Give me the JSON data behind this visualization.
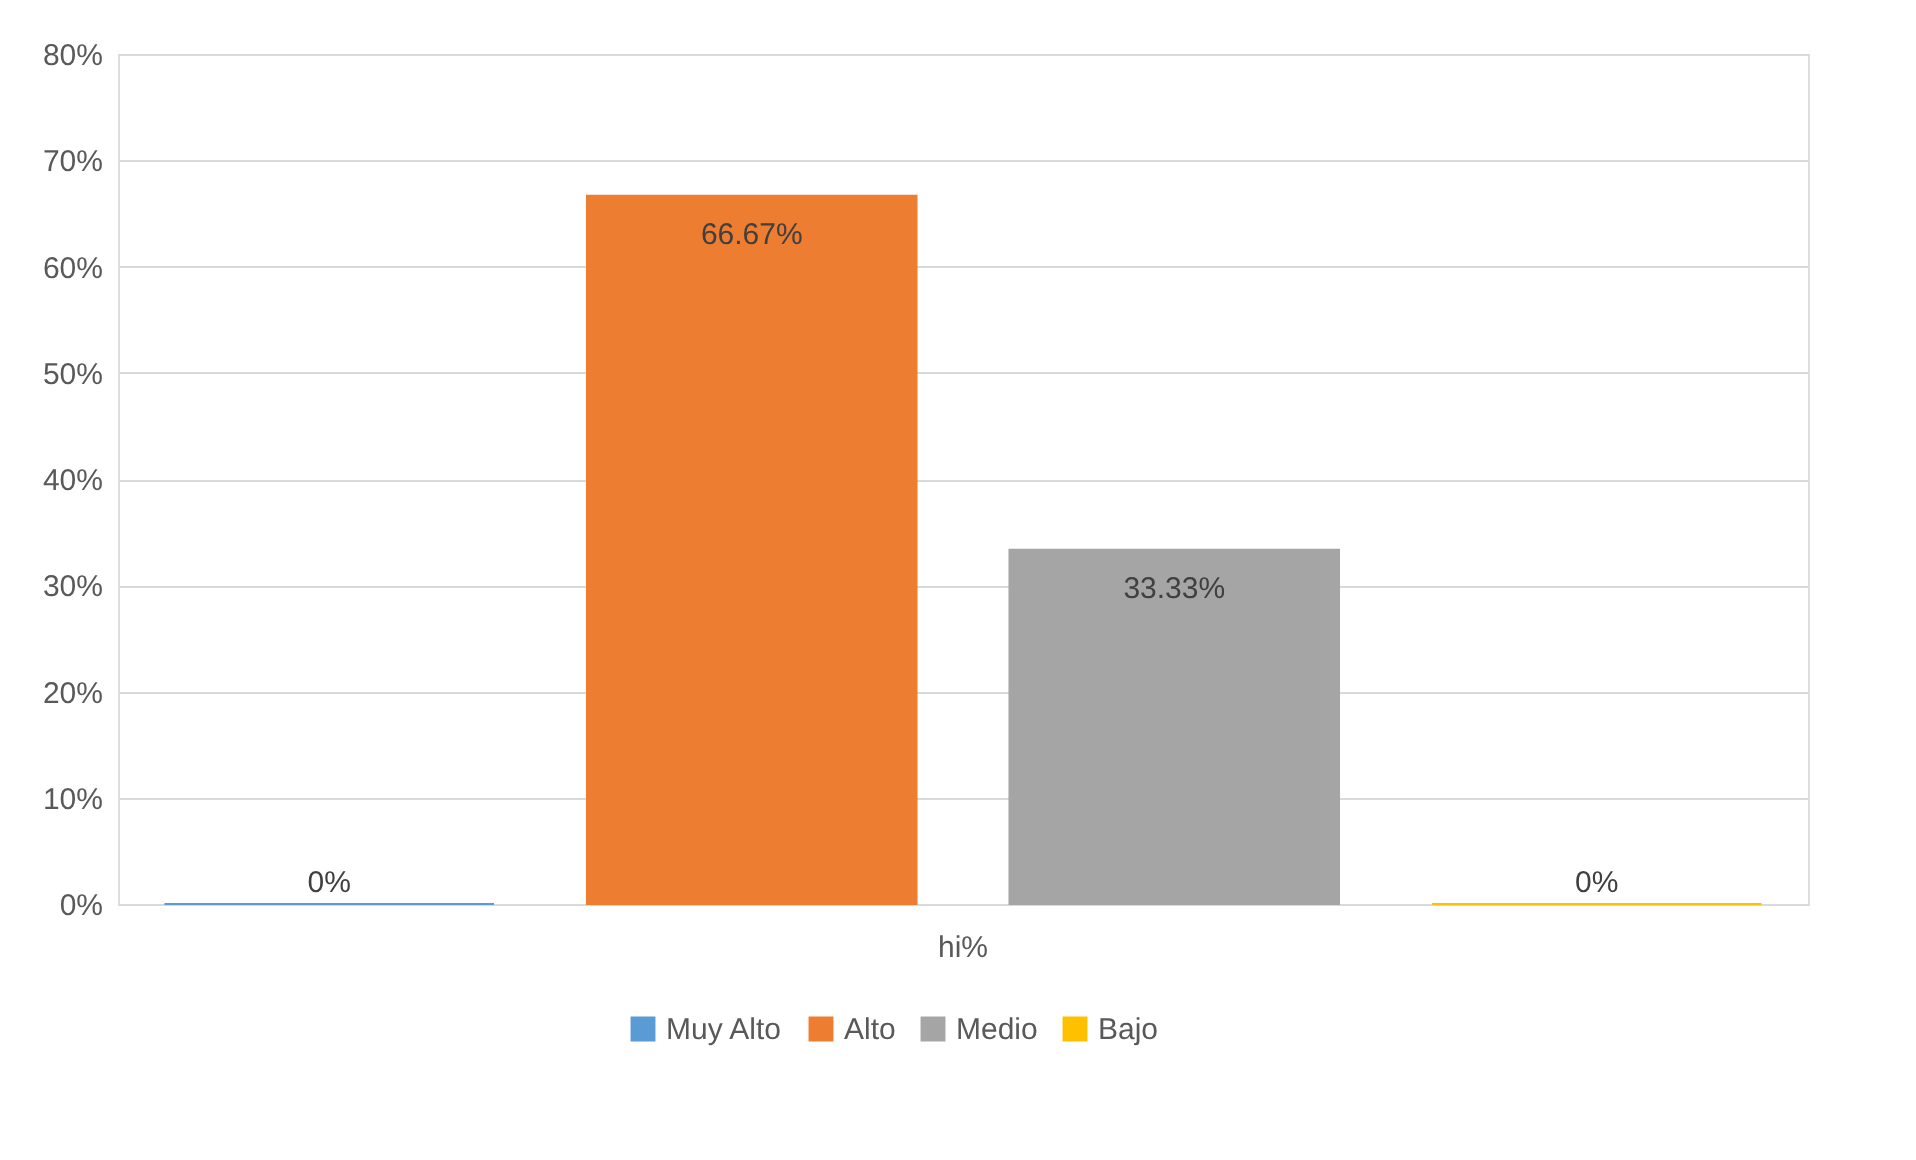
{
  "chart_data": {
    "type": "bar",
    "categories": [
      "hi%"
    ],
    "series": [
      {
        "name": "Muy Alto",
        "color": "#5b9bd5",
        "values": [
          0
        ],
        "value_labels": [
          "0%"
        ]
      },
      {
        "name": "Alto",
        "color": "#ed7d31",
        "values": [
          66.67
        ],
        "value_labels": [
          "66.67%"
        ]
      },
      {
        "name": "Medio",
        "color": "#a5a5a5",
        "values": [
          33.33
        ],
        "value_labels": [
          "33.33%"
        ]
      },
      {
        "name": "Bajo",
        "color": "#ffc000",
        "values": [
          0
        ],
        "value_labels": [
          "0%"
        ]
      }
    ],
    "ylim": [
      0,
      80
    ],
    "yticks": [
      {
        "value": 0,
        "label": "0%"
      },
      {
        "value": 10,
        "label": "10%"
      },
      {
        "value": 20,
        "label": "20%"
      },
      {
        "value": 30,
        "label": "30%"
      },
      {
        "value": 40,
        "label": "40%"
      },
      {
        "value": 50,
        "label": "50%"
      },
      {
        "value": 60,
        "label": "60%"
      },
      {
        "value": 70,
        "label": "70%"
      },
      {
        "value": 80,
        "label": "80%"
      }
    ],
    "grid": "y",
    "legend": "bottom"
  }
}
